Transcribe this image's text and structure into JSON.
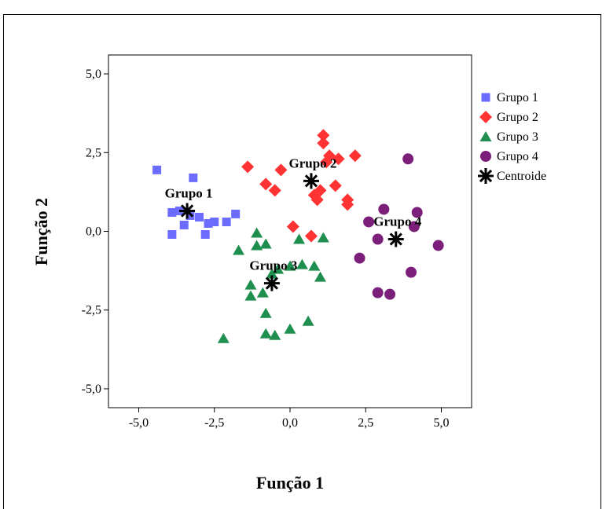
{
  "chart_data": {
    "type": "scatter",
    "xlabel": "Função 1",
    "ylabel": "Função 2",
    "xlim": [
      -6.0,
      6.0
    ],
    "ylim": [
      -5.6,
      5.6
    ],
    "x_ticks": [
      -5.0,
      -2.5,
      0.0,
      2.5,
      5.0
    ],
    "y_ticks": [
      -5.0,
      -2.5,
      0.0,
      2.5,
      5.0
    ],
    "x_tick_labels": [
      "-5,0",
      "-2,5",
      "0,0",
      "2,5",
      "5,0"
    ],
    "y_tick_labels": [
      "-5,0",
      "-2,5",
      "0,0",
      "2,5",
      "5,0"
    ],
    "legend_position": "right",
    "series": [
      {
        "name": "Grupo 1",
        "marker": "square",
        "color": "#6b6bff",
        "points": [
          [
            -4.4,
            1.95
          ],
          [
            -3.2,
            1.7
          ],
          [
            -3.9,
            0.6
          ],
          [
            -3.65,
            0.65
          ],
          [
            -3.3,
            0.5
          ],
          [
            -3.0,
            0.45
          ],
          [
            -2.7,
            0.25
          ],
          [
            -2.5,
            0.3
          ],
          [
            -2.1,
            0.3
          ],
          [
            -1.8,
            0.55
          ],
          [
            -3.9,
            -0.1
          ],
          [
            -3.5,
            0.2
          ],
          [
            -2.8,
            -0.1
          ]
        ]
      },
      {
        "name": "Grupo 2",
        "marker": "diamond",
        "color": "#ff3333",
        "points": [
          [
            1.1,
            3.05
          ],
          [
            1.1,
            2.8
          ],
          [
            1.3,
            2.4
          ],
          [
            2.15,
            2.4
          ],
          [
            1.6,
            2.3
          ],
          [
            -1.4,
            2.05
          ],
          [
            -0.3,
            1.95
          ],
          [
            1.2,
            2.2
          ],
          [
            -0.8,
            1.5
          ],
          [
            -0.5,
            1.3
          ],
          [
            1.0,
            1.3
          ],
          [
            1.5,
            1.45
          ],
          [
            0.8,
            1.15
          ],
          [
            1.9,
            1.0
          ],
          [
            1.9,
            0.85
          ],
          [
            0.9,
            1.0
          ],
          [
            0.1,
            0.15
          ],
          [
            0.7,
            -0.15
          ]
        ]
      },
      {
        "name": "Grupo 3",
        "marker": "triangle",
        "color": "#1e8f4e",
        "points": [
          [
            -1.7,
            -0.6
          ],
          [
            -1.1,
            -0.05
          ],
          [
            -0.8,
            -0.4
          ],
          [
            0.3,
            -0.25
          ],
          [
            -1.1,
            -0.45
          ],
          [
            1.1,
            -0.2
          ],
          [
            0.4,
            -1.05
          ],
          [
            -0.4,
            -1.2
          ],
          [
            0.0,
            -1.1
          ],
          [
            0.8,
            -1.1
          ],
          [
            1.0,
            -1.45
          ],
          [
            -0.6,
            -1.35
          ],
          [
            -1.3,
            -1.7
          ],
          [
            -1.3,
            -2.05
          ],
          [
            -0.9,
            -1.95
          ],
          [
            -0.8,
            -2.6
          ],
          [
            -0.8,
            -3.25
          ],
          [
            -0.5,
            -3.3
          ],
          [
            0.0,
            -3.1
          ],
          [
            0.6,
            -2.85
          ],
          [
            -2.2,
            -3.4
          ]
        ]
      },
      {
        "name": "Grupo 4",
        "marker": "circle",
        "color": "#7b1f7b",
        "points": [
          [
            3.9,
            2.3
          ],
          [
            3.1,
            0.7
          ],
          [
            2.6,
            0.3
          ],
          [
            4.2,
            0.6
          ],
          [
            4.1,
            0.15
          ],
          [
            2.9,
            -0.25
          ],
          [
            4.9,
            -0.45
          ],
          [
            2.3,
            -0.85
          ],
          [
            4.0,
            -1.3
          ],
          [
            2.9,
            -1.95
          ],
          [
            3.3,
            -2.0
          ]
        ]
      },
      {
        "name": "Centroide",
        "marker": "star",
        "color": "#000000",
        "points": [
          [
            -3.4,
            0.65
          ],
          [
            0.7,
            1.6
          ],
          [
            -0.6,
            -1.65
          ],
          [
            3.5,
            -0.25
          ]
        ]
      }
    ],
    "centroid_labels": [
      {
        "text": "Grupo 1",
        "x": -3.4,
        "y": 0.65
      },
      {
        "text": "Grupo 2",
        "x": 0.7,
        "y": 1.6
      },
      {
        "text": "Grupo 3",
        "x": -0.6,
        "y": -1.65
      },
      {
        "text": "Grupo 4",
        "x": 3.5,
        "y": -0.25
      }
    ]
  }
}
